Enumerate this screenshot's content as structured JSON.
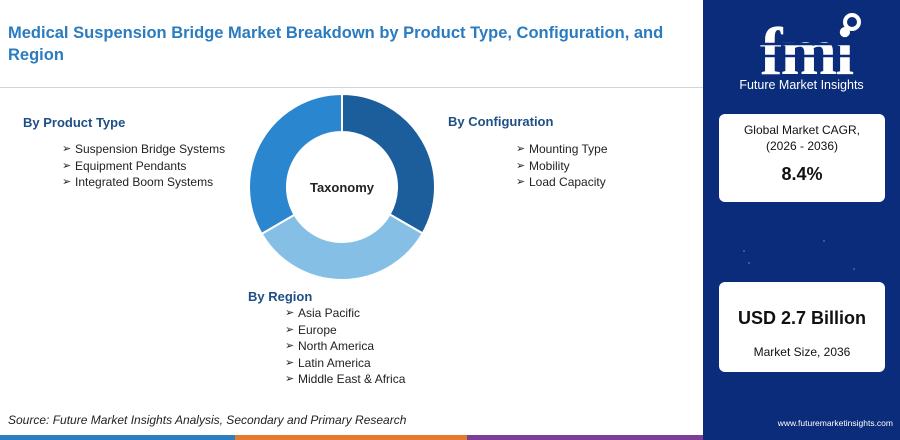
{
  "title": "Medical Suspension Bridge Market Breakdown by Product Type, Configuration, and Region",
  "groups": {
    "product": {
      "title": "By Product Type",
      "items": [
        "Suspension Bridge Systems",
        "Equipment Pendants",
        "Integrated Boom Systems"
      ]
    },
    "configuration": {
      "title": "By Configuration",
      "items": [
        "Mounting Type",
        "Mobility",
        "Load Capacity"
      ]
    },
    "region": {
      "title": "By Region",
      "items": [
        "Asia Pacific",
        "Europe",
        "North America",
        "Latin America",
        "Middle East & Africa"
      ]
    }
  },
  "donut": {
    "center_label": "Taxonomy",
    "segments": [
      {
        "share": 0.333,
        "color": "#1b5e9b"
      },
      {
        "share": 0.333,
        "color": "#86bfe6"
      },
      {
        "share": 0.334,
        "color": "#2a86cf"
      }
    ]
  },
  "source": "Source: Future Market Insights Analysis, Secondary and Primary Research",
  "sidebar": {
    "brand_letters": "fmi",
    "brand_name": "Future Market Insights",
    "cagr_label": "Global Market CAGR, (2026 - 2036)",
    "cagr_value": "8.4%",
    "size_value": "USD 2.7 Billion",
    "size_label": "Market Size, 2036",
    "website": "www.futuremarketinsights.com"
  },
  "colors": {
    "title": "#2a7bc0",
    "sidebar_bg": "#0b2c7a",
    "bar_blue": "#2b7ec1",
    "bar_orange": "#e47b2c",
    "bar_purple": "#7b3f98"
  }
}
